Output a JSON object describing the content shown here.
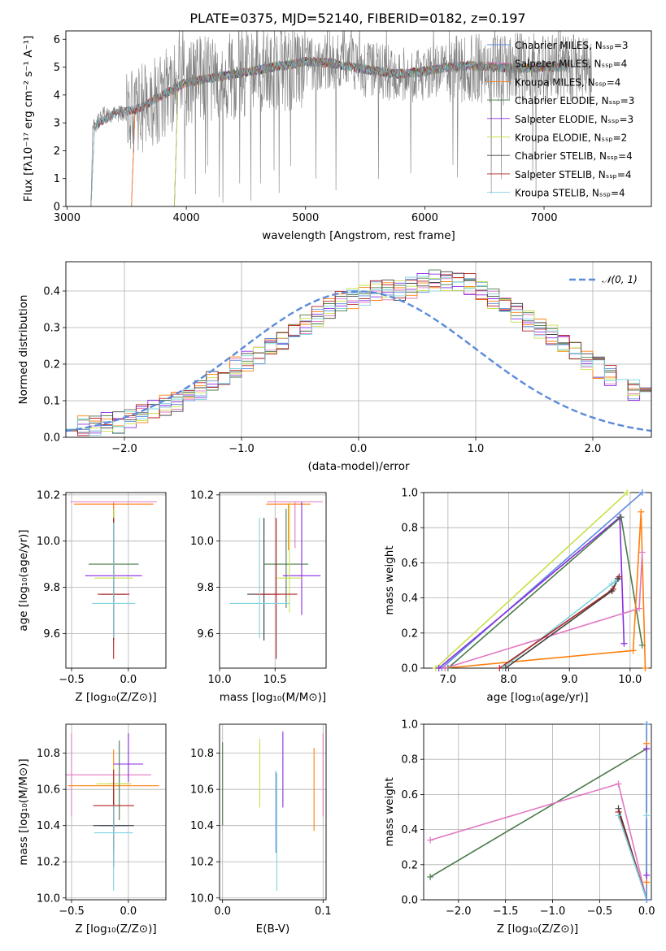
{
  "figure_title": "PLATE=0375, MJD=52140, FIBERID=0182, z=0.197",
  "chart_data": [
    {
      "id": "spectrum",
      "type": "line",
      "xlabel": "wavelength [Angstrom, rest frame]",
      "ylabel": "Flux [fλ10⁻¹⁷ erg cm⁻² s⁻¹ A⁻¹]",
      "xlim": [
        2990,
        7900
      ],
      "ylim": [
        0,
        6.3
      ],
      "xticks": [
        3000,
        4000,
        5000,
        6000,
        7000
      ],
      "yticks": [
        0,
        1,
        2,
        3,
        4,
        5,
        6
      ],
      "grid": false,
      "legend_position": "right",
      "data_series_name": "data",
      "data_color": "#808080",
      "data_envelope": {
        "x": [
          3200,
          3300,
          3400,
          3500,
          3600,
          3700,
          3800,
          3900,
          4000,
          4100,
          4200,
          4300,
          4400,
          4500,
          4600,
          4700,
          4800,
          4900,
          5000,
          5100,
          5200,
          5300,
          5400,
          5500,
          5600,
          5700,
          5800,
          5900,
          6000,
          6100,
          6200,
          6300,
          6400,
          6500,
          6600,
          6700,
          6800,
          6900,
          7000,
          7100,
          7200,
          7300,
          7400
        ],
        "y": [
          2.7,
          3.3,
          3.3,
          3.35,
          3.5,
          3.6,
          4.0,
          4.2,
          4.4,
          4.5,
          4.6,
          4.6,
          4.7,
          4.8,
          4.9,
          5.0,
          5.0,
          5.0,
          5.1,
          5.1,
          5.2,
          5.2,
          5.1,
          4.9,
          4.9,
          4.8,
          4.8,
          4.6,
          4.7,
          4.8,
          4.9,
          4.9,
          5.0,
          5.0,
          4.9,
          4.9,
          5.0,
          5.0,
          5.0,
          5.1,
          5.0,
          4.9,
          4.8
        ],
        "noise_amplitude_by_region": [
          {
            "from": 3200,
            "to": 3500,
            "amp": 0.3
          },
          {
            "from": 3500,
            "to": 5000,
            "amp": 1.6
          },
          {
            "from": 5000,
            "to": 6200,
            "amp": 1.0
          },
          {
            "from": 6200,
            "to": 7400,
            "amp": 1.3
          }
        ]
      },
      "model_envelope": {
        "x": [
          3200,
          3400,
          3600,
          3800,
          4000,
          4200,
          4400,
          4600,
          4800,
          5000,
          5200,
          5400,
          5600,
          5800,
          6000,
          6200,
          6400,
          6600,
          6800,
          7000
        ],
        "y": [
          2.8,
          3.35,
          3.5,
          4.0,
          4.45,
          4.6,
          4.75,
          4.9,
          5.05,
          5.2,
          5.15,
          5.0,
          4.85,
          4.75,
          4.85,
          5.0,
          5.05,
          5.0,
          4.95,
          5.0
        ]
      },
      "series": [
        {
          "name": "Chabrier MILES, Nₛₛₚ=3",
          "color": "#5b8bdb",
          "x_start": 3540
        },
        {
          "name": "Salpeter MILES, Nₛₛₚ=4",
          "color": "#e377c2",
          "x_start": 3540
        },
        {
          "name": "Kroupa MILES, Nₛₛₚ=4",
          "color": "#ff7f0e",
          "x_start": 3540
        },
        {
          "name": "Chabrier ELODIE, Nₛₛₚ=3",
          "color": "#4a7a4a",
          "x_start": 3900
        },
        {
          "name": "Salpeter ELODIE, Nₛₛₚ=3",
          "color": "#8a2be2",
          "x_start": 3900
        },
        {
          "name": "Kroupa ELODIE, Nₛₛₚ=2",
          "color": "#c8e04a",
          "x_start": 3900
        },
        {
          "name": "Chabrier STELIB, Nₛₛₚ=4",
          "color": "#404040",
          "x_start": 3200
        },
        {
          "name": "Salpeter STELIB, Nₛₛₚ=4",
          "color": "#b22222",
          "x_start": 3200
        },
        {
          "name": "Kroupa STELIB, Nₛₛₚ=4",
          "color": "#7fd4e0",
          "x_start": 3200
        }
      ]
    },
    {
      "id": "residuals",
      "type": "histogram",
      "xlabel": "(data-model)/error",
      "ylabel": "Normed distribution",
      "xlim": [
        -2.5,
        2.5
      ],
      "ylim": [
        0,
        0.48
      ],
      "xticks": [
        -2,
        -1,
        0,
        1,
        2
      ],
      "yticks": [
        0.0,
        0.1,
        0.2,
        0.3,
        0.4
      ],
      "grid": true,
      "legend_position": "top-right",
      "legend_label": "𝒩(0, 1)",
      "gaussian_color": "#5b8bdb",
      "bin_width": 0.1,
      "bin_start": -2.5,
      "base_hist": [
        0.03,
        0.03,
        0.03,
        0.04,
        0.04,
        0.05,
        0.06,
        0.08,
        0.09,
        0.1,
        0.12,
        0.13,
        0.15,
        0.17,
        0.19,
        0.21,
        0.23,
        0.25,
        0.27,
        0.29,
        0.31,
        0.33,
        0.35,
        0.37,
        0.38,
        0.39,
        0.4,
        0.4,
        0.4,
        0.41,
        0.42,
        0.43,
        0.43,
        0.43,
        0.42,
        0.4,
        0.38,
        0.36,
        0.34,
        0.32,
        0.3,
        0.28,
        0.25,
        0.23,
        0.21,
        0.19,
        0.17,
        0.15,
        0.13,
        0.11
      ],
      "series_colors": [
        "#5b8bdb",
        "#e377c2",
        "#ff7f0e",
        "#4a7a4a",
        "#8a2be2",
        "#c8e04a",
        "#404040",
        "#b22222",
        "#7fd4e0"
      ]
    },
    {
      "id": "age_vs_Z",
      "type": "scatter",
      "xlabel": "Z [log₁₀(Z/Z⊙)]",
      "ylabel": "age  [log₁₀(age/yr)]",
      "xlim": [
        -0.55,
        0.33
      ],
      "ylim": [
        9.45,
        10.21
      ],
      "xticks": [
        -0.5,
        0.0
      ],
      "yticks": [
        9.6,
        9.8,
        10.0,
        10.2
      ],
      "grid": true,
      "points": [
        {
          "series": 0,
          "x": -0.13,
          "y": 9.77,
          "xerr": 0.12,
          "yerr": [
            0.2,
            0.33
          ]
        },
        {
          "series": 1,
          "x": -0.13,
          "y": 10.17,
          "xerr": 0.38,
          "yerr": [
            0.25,
            0.0
          ]
        },
        {
          "series": 2,
          "x": -0.13,
          "y": 10.16,
          "xerr": 0.35,
          "yerr": [
            0.2,
            0.0
          ]
        },
        {
          "series": 3,
          "x": -0.13,
          "y": 9.9,
          "xerr": 0.22,
          "yerr": [
            0.19,
            0.24
          ]
        },
        {
          "series": 4,
          "x": -0.13,
          "y": 9.85,
          "xerr": 0.25,
          "yerr": [
            0.22,
            0.2
          ]
        },
        {
          "series": 5,
          "x": -0.13,
          "y": 9.84,
          "xerr": 0.17,
          "yerr": [
            0.15,
            0.3
          ]
        },
        {
          "series": 6,
          "x": -0.13,
          "y": 9.77,
          "xerr": 0.11,
          "yerr": [
            0.2,
            0.33
          ]
        },
        {
          "series": 7,
          "x": -0.13,
          "y": 9.77,
          "xerr": 0.14,
          "yerr": [
            0.28,
            0.33
          ]
        },
        {
          "series": 8,
          "x": -0.13,
          "y": 9.73,
          "xerr": 0.19,
          "yerr": [
            0.15,
            0.35
          ]
        }
      ]
    },
    {
      "id": "age_vs_mass",
      "type": "scatter",
      "xlabel": "mass [log₁₀(M/M⊙)]",
      "ylabel": "",
      "xlim": [
        10.0,
        10.96
      ],
      "ylim": [
        9.45,
        10.21
      ],
      "xticks": [
        10.0,
        10.5
      ],
      "yticks": [
        9.6,
        9.8,
        10.0,
        10.2
      ],
      "grid": true,
      "points": [
        {
          "series": 0,
          "x": 10.4,
          "y": 9.77,
          "xerr": 0.06,
          "yerr": [
            0.2,
            0.33
          ]
        },
        {
          "series": 1,
          "x": 10.68,
          "y": 10.17,
          "xerr": 0.25,
          "yerr": [
            0.2,
            0.0
          ]
        },
        {
          "series": 2,
          "x": 10.62,
          "y": 10.16,
          "xerr": 0.2,
          "yerr": [
            0.2,
            0.0
          ]
        },
        {
          "series": 3,
          "x": 10.6,
          "y": 9.9,
          "xerr": 0.2,
          "yerr": [
            0.19,
            0.24
          ]
        },
        {
          "series": 4,
          "x": 10.74,
          "y": 9.85,
          "xerr": 0.17,
          "yerr": [
            0.17,
            0.32
          ]
        },
        {
          "series": 5,
          "x": 10.63,
          "y": 9.84,
          "xerr": 0.12,
          "yerr": [
            0.15,
            0.33
          ]
        },
        {
          "series": 6,
          "x": 10.4,
          "y": 9.77,
          "xerr": 0.15,
          "yerr": [
            0.2,
            0.33
          ]
        },
        {
          "series": 7,
          "x": 10.51,
          "y": 9.77,
          "xerr": 0.19,
          "yerr": [
            0.28,
            0.33
          ]
        },
        {
          "series": 8,
          "x": 10.36,
          "y": 9.73,
          "xerr": 0.27,
          "yerr": [
            0.15,
            0.37
          ]
        }
      ]
    },
    {
      "id": "weight_vs_age",
      "type": "line",
      "xlabel": "age  [log₁₀(age/yr)]",
      "ylabel": "mass weight",
      "xlim": [
        6.6,
        10.35
      ],
      "ylim": [
        0,
        1.0
      ],
      "xticks": [
        7,
        8,
        9,
        10
      ],
      "yticks": [
        0.0,
        0.2,
        0.4,
        0.6,
        0.8,
        1.0
      ],
      "grid": true,
      "series": [
        {
          "color": "#5b8bdb",
          "x": [
            6.9,
            10.2
          ],
          "y": [
            0.0,
            1.0
          ]
        },
        {
          "color": "#c8e04a",
          "x": [
            6.8,
            9.95
          ],
          "y": [
            0.0,
            1.0
          ]
        },
        {
          "color": "#8a2be2",
          "x": [
            6.85,
            9.83,
            9.9
          ],
          "y": [
            0.0,
            0.86,
            0.14
          ]
        },
        {
          "color": "#4a7a4a",
          "x": [
            7.0,
            9.85,
            10.2
          ],
          "y": [
            0.0,
            0.86,
            0.13
          ]
        },
        {
          "color": "#ff7f0e",
          "x": [
            6.95,
            10.05,
            10.18,
            10.25
          ],
          "y": [
            0.0,
            0.1,
            0.89,
            0.0
          ]
        },
        {
          "color": "#e377c2",
          "x": [
            6.95,
            10.15,
            10.2
          ],
          "y": [
            0.0,
            0.34,
            0.66
          ]
        },
        {
          "color": "#7fd4e0",
          "x": [
            7.9,
            9.7,
            9.78,
            9.82
          ],
          "y": [
            0.0,
            0.48,
            0.5,
            0.52
          ]
        },
        {
          "color": "#b22222",
          "x": [
            7.85,
            9.72,
            9.82
          ],
          "y": [
            0.0,
            0.45,
            0.52
          ]
        },
        {
          "color": "#404040",
          "x": [
            7.95,
            9.7,
            9.8
          ],
          "y": [
            0.0,
            0.44,
            0.51
          ]
        }
      ]
    },
    {
      "id": "mass_vs_Z",
      "type": "scatter",
      "xlabel": "Z [log₁₀(Z/Z⊙)]",
      "ylabel": "mass [log₁₀(M/M⊙)]",
      "xlim": [
        -0.55,
        0.33
      ],
      "ylim": [
        9.99,
        10.96
      ],
      "xticks": [
        -0.5,
        0.0
      ],
      "yticks": [
        10.0,
        10.2,
        10.4,
        10.6,
        10.8
      ],
      "grid": true,
      "points": [
        {
          "series": 0,
          "x": -0.13,
          "y": 10.4,
          "xerr": 0.12,
          "yerr": [
            0.15,
            0.2
          ]
        },
        {
          "series": 1,
          "x": -0.5,
          "y": 10.68,
          "xerr": 0.7,
          "yerr": [
            0.23,
            0.23
          ]
        },
        {
          "series": 2,
          "x": -0.13,
          "y": 10.62,
          "xerr": 0.4,
          "yerr": [
            0.2,
            0.2
          ]
        },
        {
          "series": 3,
          "x": -0.08,
          "y": 10.63,
          "xerr": 0.1,
          "yerr": [
            0.2,
            0.24
          ]
        },
        {
          "series": 4,
          "x": 0.0,
          "y": 10.74,
          "xerr": 0.13,
          "yerr": [
            0.1,
            0.17
          ]
        },
        {
          "series": 5,
          "x": -0.13,
          "y": 10.63,
          "xerr": 0.15,
          "yerr": [
            0.1,
            0.1
          ]
        },
        {
          "series": 6,
          "x": -0.13,
          "y": 10.4,
          "xerr": 0.18,
          "yerr": [
            0.23,
            0.2
          ]
        },
        {
          "series": 7,
          "x": -0.13,
          "y": 10.51,
          "xerr": 0.18,
          "yerr": [
            0.23,
            0.2
          ]
        },
        {
          "series": 8,
          "x": -0.13,
          "y": 10.36,
          "xerr": 0.17,
          "yerr": [
            0.32,
            0.15
          ]
        }
      ]
    },
    {
      "id": "mass_vs_EBV",
      "type": "scatter",
      "xlabel": "E(B-V)",
      "ylabel": "",
      "xlim": [
        -0.003,
        0.103
      ],
      "ylim": [
        9.99,
        10.96
      ],
      "xticks": [
        0.0,
        0.1
      ],
      "yticks": [
        10.0,
        10.2,
        10.4,
        10.6,
        10.8
      ],
      "grid": true,
      "points": [
        {
          "series": 3,
          "x": 0.0,
          "y": 10.63,
          "xerr": 0,
          "yerr": [
            0.23,
            0.23
          ]
        },
        {
          "series": 5,
          "x": 0.037,
          "y": 10.68,
          "xerr": 0,
          "yerr": [
            0.18,
            0.2
          ]
        },
        {
          "series": 0,
          "x": 0.053,
          "y": 10.4,
          "xerr": 0,
          "yerr": [
            0.15,
            0.3
          ]
        },
        {
          "series": 8,
          "x": 0.054,
          "y": 10.36,
          "xerr": 0,
          "yerr": [
            0.32,
            0.33
          ]
        },
        {
          "series": 4,
          "x": 0.06,
          "y": 10.7,
          "xerr": 0,
          "yerr": [
            0.2,
            0.22
          ]
        },
        {
          "series": 2,
          "x": 0.091,
          "y": 10.6,
          "xerr": 0,
          "yerr": [
            0.23,
            0.23
          ]
        },
        {
          "series": 1,
          "x": 0.1,
          "y": 10.68,
          "xerr": 0,
          "yerr": [
            0.23,
            0.23
          ]
        }
      ]
    },
    {
      "id": "weight_vs_Z",
      "type": "line",
      "xlabel": "Z [log₁₀(Z/Z⊙)]",
      "ylabel": "mass weight",
      "xlim": [
        -2.37,
        0.05
      ],
      "ylim": [
        0,
        1.0
      ],
      "xticks": [
        -2.0,
        -1.5,
        -1.0,
        -0.5,
        0.0
      ],
      "yticks": [
        0.0,
        0.2,
        0.4,
        0.6,
        0.8,
        1.0
      ],
      "grid": true,
      "series": [
        {
          "color": "#4a7a4a",
          "x": [
            -2.3,
            0.0
          ],
          "y": [
            0.13,
            0.86
          ]
        },
        {
          "color": "#e377c2",
          "x": [
            -2.3,
            -0.3,
            0.0
          ],
          "y": [
            0.34,
            0.66,
            0.0
          ]
        },
        {
          "color": "#404040",
          "x": [
            -0.3,
            0.0
          ],
          "y": [
            0.52,
            0.0
          ]
        },
        {
          "color": "#b22222",
          "x": [
            -0.3,
            0.0
          ],
          "y": [
            0.5,
            0.0
          ]
        },
        {
          "color": "#7fd4e0",
          "x": [
            -0.3,
            0.0,
            0.0
          ],
          "y": [
            0.48,
            0.0,
            0.48
          ]
        },
        {
          "color": "#c8e04a",
          "x": [
            0.0,
            0.0
          ],
          "y": [
            0.0,
            1.0
          ]
        },
        {
          "color": "#ff7f0e",
          "x": [
            0.0,
            0.0
          ],
          "y": [
            0.1,
            0.89
          ]
        },
        {
          "color": "#8a2be2",
          "x": [
            0.0,
            0.0
          ],
          "y": [
            0.14,
            0.86
          ]
        },
        {
          "color": "#5b8bdb",
          "x": [
            0.0,
            0.0
          ],
          "y": [
            0.0,
            1.0
          ]
        }
      ]
    }
  ]
}
